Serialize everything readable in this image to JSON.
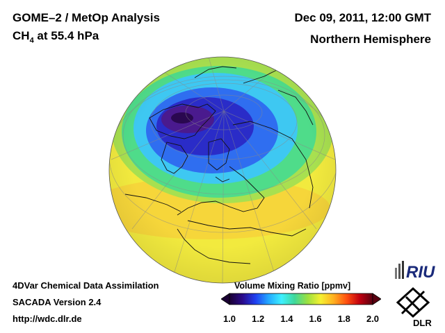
{
  "header": {
    "title_line1": "GOME–2 / MetOp Analysis",
    "title_species": "CH",
    "title_species_sub": "4",
    "title_level": " at 55.4 hPa",
    "date": "Dec 09, 2011, 12:00 GMT",
    "region": "Northern Hemisphere"
  },
  "footer": {
    "line1": "4DVar Chemical Data Assimilation",
    "line2": "SACADA Version 2.4",
    "line3": "http://wdc.dlr.de"
  },
  "colorbar": {
    "title": "Volume Mixing Ratio [ppmv]",
    "ticks": [
      "1.0",
      "1.2",
      "1.4",
      "1.6",
      "1.8",
      "2.0"
    ],
    "range": [
      1.0,
      2.0
    ],
    "colors": [
      "#1a0033",
      "#2a0a8a",
      "#1f3ff0",
      "#23a8ff",
      "#3ef0ff",
      "#3fd89a",
      "#9be040",
      "#f5f032",
      "#ffb020",
      "#ff5010",
      "#c00010",
      "#5a0010"
    ]
  },
  "logos": {
    "riu": "RIU",
    "dlr": "DLR"
  },
  "map": {
    "projection": "orthographic",
    "hemisphere": "north",
    "background_color": "#f2ea3e",
    "low_color": "#3b1b9a",
    "mid_color": "#2ecbf0"
  }
}
